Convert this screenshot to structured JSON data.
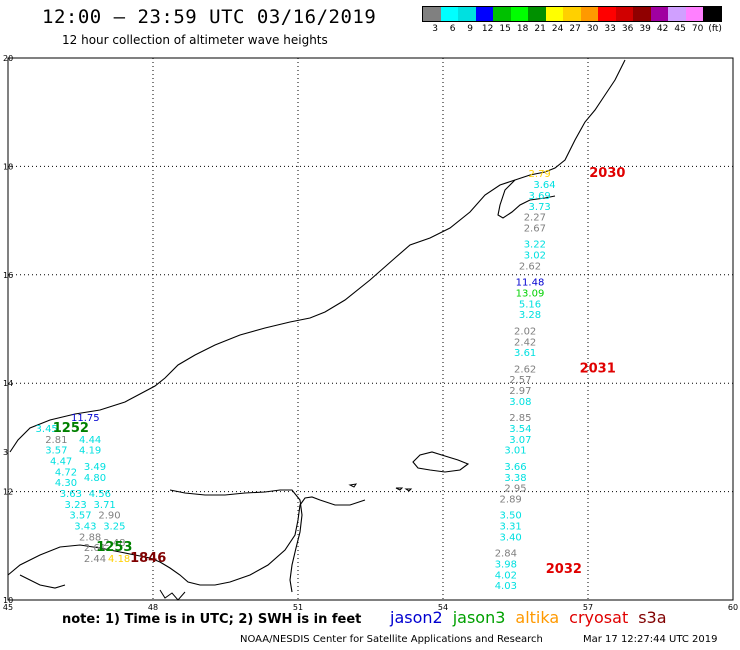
{
  "header": {
    "title": "12:00 – 23:59 UTC 03/16/2019",
    "subtitle": "12 hour collection of altimeter wave heights"
  },
  "colorbar": {
    "colors": [
      "#808080",
      "#00ffff",
      "#00e0e0",
      "#0000ff",
      "#00c000",
      "#00ff00",
      "#009000",
      "#ffff00",
      "#ffd000",
      "#ff9900",
      "#ff0000",
      "#d00000",
      "#900000",
      "#a000a0",
      "#d0a0ff",
      "#ff80ff",
      "#000000"
    ],
    "labels": [
      "3",
      "6",
      "9",
      "12",
      "15",
      "18",
      "21",
      "24",
      "27",
      "30",
      "33",
      "36",
      "39",
      "42",
      "45",
      "70",
      "(ft)"
    ]
  },
  "axes": {
    "x_ticks": [
      "45",
      "48",
      "51",
      "54",
      "57",
      "60"
    ],
    "y_ticks": [
      "20",
      "18",
      "16",
      "14",
      "12",
      "10"
    ],
    "lon_range": [
      45,
      60
    ],
    "lat_range": [
      10,
      20
    ],
    "edge_label": "3"
  },
  "time_labels": [
    {
      "text": "2030",
      "lon": 57.4,
      "lat": 17.8,
      "color": "#e00000"
    },
    {
      "text": "2031",
      "lon": 57.2,
      "lat": 14.2,
      "color": "#e00000"
    },
    {
      "text": "2032",
      "lon": 56.5,
      "lat": 10.5,
      "color": "#e00000"
    },
    {
      "text": "1252",
      "lon": 46.3,
      "lat": 13.1,
      "color": "#008000"
    },
    {
      "text": "1253",
      "lon": 47.2,
      "lat": 10.9,
      "color": "#008000"
    },
    {
      "text": "1846",
      "lon": 47.9,
      "lat": 10.7,
      "color": "#800000"
    }
  ],
  "wave_heights": [
    {
      "v": "2.79",
      "lon": 56.0,
      "lat": 17.8,
      "c": "#ffd000"
    },
    {
      "v": "3.64",
      "lon": 56.1,
      "lat": 17.6,
      "c": "#00e0e0"
    },
    {
      "v": "3.69",
      "lon": 56.0,
      "lat": 17.4,
      "c": "#00e0e0"
    },
    {
      "v": "3.73",
      "lon": 56.0,
      "lat": 17.2,
      "c": "#00e0e0"
    },
    {
      "v": "2.27",
      "lon": 55.9,
      "lat": 17.0,
      "c": "#808080"
    },
    {
      "v": "2.67",
      "lon": 55.9,
      "lat": 16.8,
      "c": "#808080"
    },
    {
      "v": "3.22",
      "lon": 55.9,
      "lat": 16.5,
      "c": "#00e0e0"
    },
    {
      "v": "3.02",
      "lon": 55.9,
      "lat": 16.3,
      "c": "#00e0e0"
    },
    {
      "v": "2.62",
      "lon": 55.8,
      "lat": 16.1,
      "c": "#808080"
    },
    {
      "v": "11.48",
      "lon": 55.8,
      "lat": 15.8,
      "c": "#0000d0"
    },
    {
      "v": "13.09",
      "lon": 55.8,
      "lat": 15.6,
      "c": "#00d000"
    },
    {
      "v": "5.16",
      "lon": 55.8,
      "lat": 15.4,
      "c": "#00e0e0"
    },
    {
      "v": "3.28",
      "lon": 55.8,
      "lat": 15.2,
      "c": "#00e0e0"
    },
    {
      "v": "2.02",
      "lon": 55.7,
      "lat": 14.9,
      "c": "#808080"
    },
    {
      "v": "2.42",
      "lon": 55.7,
      "lat": 14.7,
      "c": "#808080"
    },
    {
      "v": "3.61",
      "lon": 55.7,
      "lat": 14.5,
      "c": "#00e0e0"
    },
    {
      "v": "2.62",
      "lon": 55.7,
      "lat": 14.2,
      "c": "#808080"
    },
    {
      "v": "2.57",
      "lon": 55.6,
      "lat": 14.0,
      "c": "#808080"
    },
    {
      "v": "2.97",
      "lon": 55.6,
      "lat": 13.8,
      "c": "#808080"
    },
    {
      "v": "3.08",
      "lon": 55.6,
      "lat": 13.6,
      "c": "#00e0e0"
    },
    {
      "v": "2.85",
      "lon": 55.6,
      "lat": 13.3,
      "c": "#808080"
    },
    {
      "v": "3.54",
      "lon": 55.6,
      "lat": 13.1,
      "c": "#00e0e0"
    },
    {
      "v": "3.07",
      "lon": 55.6,
      "lat": 12.9,
      "c": "#00e0e0"
    },
    {
      "v": "3.01",
      "lon": 55.5,
      "lat": 12.7,
      "c": "#00e0e0"
    },
    {
      "v": "3.66",
      "lon": 55.5,
      "lat": 12.4,
      "c": "#00e0e0"
    },
    {
      "v": "3.38",
      "lon": 55.5,
      "lat": 12.2,
      "c": "#00e0e0"
    },
    {
      "v": "2.95",
      "lon": 55.5,
      "lat": 12.0,
      "c": "#808080"
    },
    {
      "v": "2.89",
      "lon": 55.4,
      "lat": 11.8,
      "c": "#808080"
    },
    {
      "v": "3.50",
      "lon": 55.4,
      "lat": 11.5,
      "c": "#00e0e0"
    },
    {
      "v": "3.31",
      "lon": 55.4,
      "lat": 11.3,
      "c": "#00e0e0"
    },
    {
      "v": "3.40",
      "lon": 55.4,
      "lat": 11.1,
      "c": "#00e0e0"
    },
    {
      "v": "2.84",
      "lon": 55.3,
      "lat": 10.8,
      "c": "#808080"
    },
    {
      "v": "3.98",
      "lon": 55.3,
      "lat": 10.6,
      "c": "#00e0e0"
    },
    {
      "v": "4.02",
      "lon": 55.3,
      "lat": 10.4,
      "c": "#00e0e0"
    },
    {
      "v": "4.03",
      "lon": 55.3,
      "lat": 10.2,
      "c": "#00e0e0"
    },
    {
      "v": "11.75",
      "lon": 46.6,
      "lat": 13.3,
      "c": "#0000d0"
    },
    {
      "v": "3.45",
      "lon": 45.8,
      "lat": 13.1,
      "c": "#00e0e0"
    },
    {
      "v": "2.81",
      "lon": 46.0,
      "lat": 12.9,
      "c": "#808080"
    },
    {
      "v": "4.44",
      "lon": 46.7,
      "lat": 12.9,
      "c": "#00e0e0"
    },
    {
      "v": "3.57",
      "lon": 46.0,
      "lat": 12.7,
      "c": "#00e0e0"
    },
    {
      "v": "4.19",
      "lon": 46.7,
      "lat": 12.7,
      "c": "#00e0e0"
    },
    {
      "v": "4.47",
      "lon": 46.1,
      "lat": 12.5,
      "c": "#00e0e0"
    },
    {
      "v": "3.49",
      "lon": 46.8,
      "lat": 12.4,
      "c": "#00e0e0"
    },
    {
      "v": "4.72",
      "lon": 46.2,
      "lat": 12.3,
      "c": "#00e0e0"
    },
    {
      "v": "4.80",
      "lon": 46.8,
      "lat": 12.2,
      "c": "#00e0e0"
    },
    {
      "v": "4.30",
      "lon": 46.2,
      "lat": 12.1,
      "c": "#00e0e0"
    },
    {
      "v": "3.63",
      "lon": 46.3,
      "lat": 11.9,
      "c": "#00e0e0"
    },
    {
      "v": "4.56",
      "lon": 46.9,
      "lat": 11.9,
      "c": "#00e0e0"
    },
    {
      "v": "3.23",
      "lon": 46.4,
      "lat": 11.7,
      "c": "#00e0e0"
    },
    {
      "v": "3.71",
      "lon": 47.0,
      "lat": 11.7,
      "c": "#00e0e0"
    },
    {
      "v": "3.57",
      "lon": 46.5,
      "lat": 11.5,
      "c": "#00e0e0"
    },
    {
      "v": "2.90",
      "lon": 47.1,
      "lat": 11.5,
      "c": "#808080"
    },
    {
      "v": "3.43",
      "lon": 46.6,
      "lat": 11.3,
      "c": "#00e0e0"
    },
    {
      "v": "3.25",
      "lon": 47.2,
      "lat": 11.3,
      "c": "#00e0e0"
    },
    {
      "v": "2.88",
      "lon": 46.7,
      "lat": 11.1,
      "c": "#808080"
    },
    {
      "v": "2.48",
      "lon": 47.2,
      "lat": 11.0,
      "c": "#808080"
    },
    {
      "v": "2.61",
      "lon": 46.8,
      "lat": 10.9,
      "c": "#808080"
    },
    {
      "v": "2.44",
      "lon": 46.8,
      "lat": 10.7,
      "c": "#808080"
    },
    {
      "v": "4.18",
      "lon": 47.3,
      "lat": 10.7,
      "c": "#ffd000"
    }
  ],
  "footer": {
    "note": "note: 1) Time is in UTC; 2) SWH is in feet",
    "legend": [
      {
        "name": "jason2",
        "color": "#0000d0"
      },
      {
        "name": "jason3",
        "color": "#00a000"
      },
      {
        "name": "altika",
        "color": "#ff9900"
      },
      {
        "name": "cryosat",
        "color": "#e00000"
      },
      {
        "name": "s3a",
        "color": "#800000"
      }
    ],
    "credit": "NOAA/NESDIS Center for Satellite Applications and Research",
    "timestamp": "Mar 17 12:27:44 UTC 2019"
  }
}
